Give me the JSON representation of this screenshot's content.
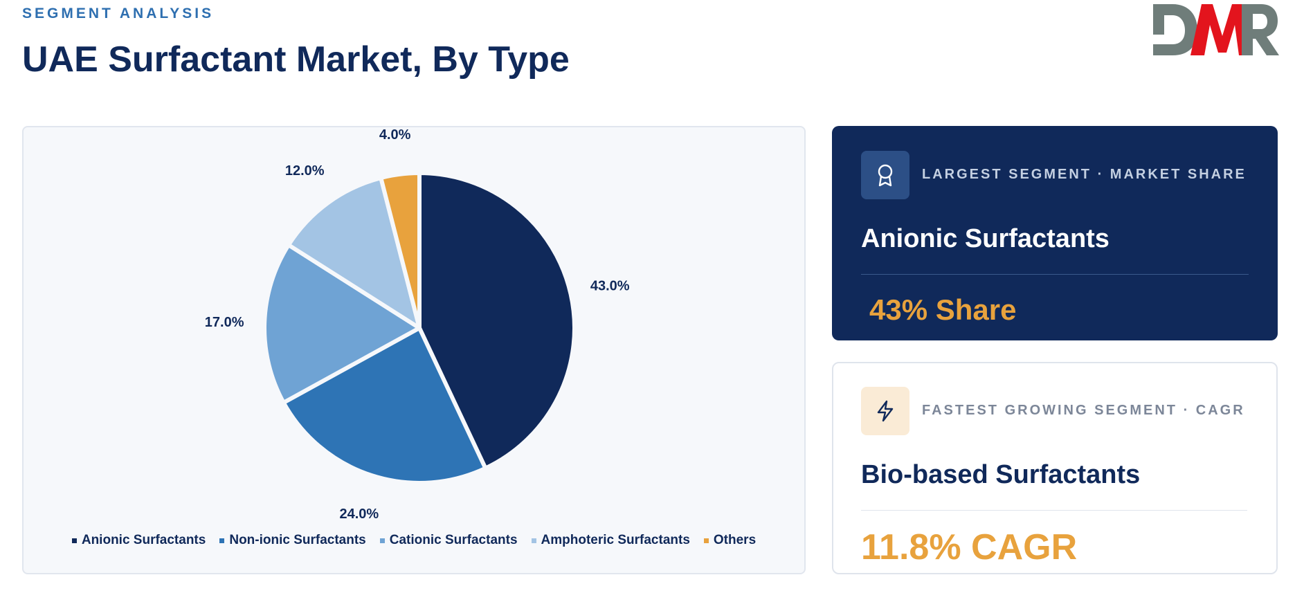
{
  "header": {
    "eyebrow": "SEGMENT ANALYSIS",
    "title": "UAE Surfactant Market, By Type"
  },
  "logo": {
    "text": "DMR"
  },
  "colors": {
    "navy": "#10295a",
    "blue": "#2e74b5",
    "mid_blue": "#6fa3d4",
    "light_blue": "#a3c4e4",
    "orange": "#e8a23d"
  },
  "chart_data": {
    "type": "pie",
    "categories": [
      "Anionic Surfactants",
      "Non-ionic Surfactants",
      "Cationic Surfactants",
      "Amphoteric Surfactants",
      "Others"
    ],
    "values": [
      43.0,
      24.0,
      17.0,
      12.0,
      4.0
    ],
    "labels": [
      "43.0%",
      "24.0%",
      "17.0%",
      "12.0%",
      "4.0%"
    ],
    "colors": [
      "#10295a",
      "#2e74b5",
      "#6fa3d4",
      "#a3c4e4",
      "#e8a23d"
    ],
    "unit": "%",
    "legend_position": "bottom"
  },
  "cards": {
    "largest": {
      "icon": "award-icon",
      "label": "LARGEST SEGMENT  ·  MARKET SHARE",
      "segment": "Anionic Surfactants",
      "value": "43% Share"
    },
    "fastest": {
      "icon": "lightning-icon",
      "label": "FASTEST GROWING SEGMENT  ·  CAGR",
      "segment": "Bio-based Surfactants",
      "value": "11.8% CAGR"
    }
  }
}
